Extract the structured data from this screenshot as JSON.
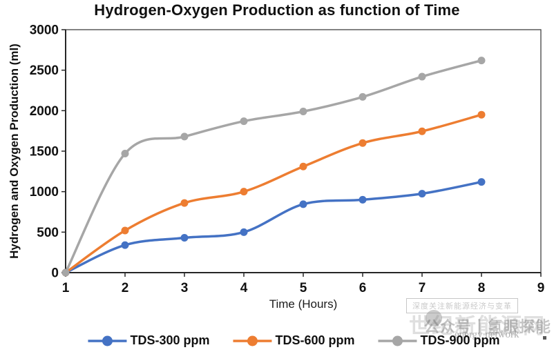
{
  "title": "Hydrogen-Oxygen Production as function of Time",
  "chart_data": {
    "type": "line",
    "x": [
      1,
      2,
      3,
      4,
      5,
      6,
      7,
      8
    ],
    "series": [
      {
        "name": "TDS-300 ppm",
        "color": "#4472C4",
        "values": [
          0,
          340,
          430,
          500,
          845,
          900,
          975,
          1120
        ]
      },
      {
        "name": "TDS-600 ppm",
        "color": "#ED7D31",
        "values": [
          0,
          520,
          860,
          1000,
          1310,
          1600,
          1745,
          1950
        ]
      },
      {
        "name": "TDS-900 ppm",
        "color": "#A6A6A6",
        "values": [
          0,
          1470,
          1680,
          1870,
          1990,
          2170,
          2420,
          2620
        ]
      }
    ],
    "xlabel": "Time (Hours)",
    "ylabel": "Hydrogen and Oxygen Production (ml)",
    "xlim": [
      1,
      9
    ],
    "ylim": [
      0,
      3000
    ],
    "x_ticks": [
      1,
      2,
      3,
      4,
      5,
      6,
      7,
      8,
      9
    ],
    "y_ticks": [
      0,
      500,
      1000,
      1500,
      2000,
      2500,
      3000
    ],
    "grid": false,
    "smooth_lines": true,
    "marker": "circle",
    "legend_position": "bottom"
  },
  "watermark": {
    "boxed_text": "深度关注新能源经济与变革",
    "large_text": "世纪新能源网",
    "overlay_text": "公众号丨氢眼探能",
    "english_text": "energy network"
  },
  "colors": {
    "text": "#111111",
    "axis": "#262626",
    "plot_border": "#404040"
  }
}
